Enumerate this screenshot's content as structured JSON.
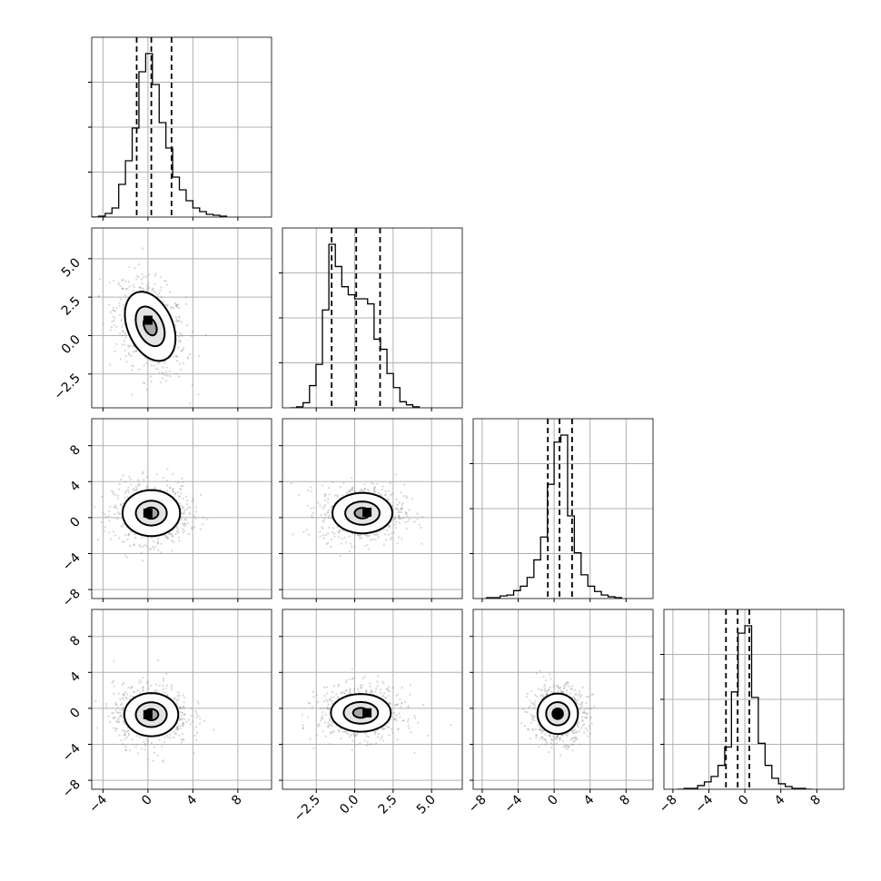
{
  "chart_data": {
    "type": "corner",
    "grid": true,
    "colors": {
      "line": "#000000",
      "grid": "#b0b0b0",
      "scatter": "#8c8c8c",
      "density_max": "#000000"
    },
    "parameters": [
      {
        "index": 0,
        "range": [
          -5.0,
          11.0
        ],
        "quantiles": [
          -1.0,
          0.3,
          2.1
        ],
        "ticks": [
          -4,
          0,
          4,
          8
        ],
        "tick_labels": [
          "−4",
          "0",
          "4",
          "8"
        ],
        "hist": {
          "edges": [
            -5.0,
            -4.4,
            -3.8,
            -3.2,
            -2.6,
            -2.0,
            -1.4,
            -0.8,
            -0.2,
            0.4,
            1.0,
            1.6,
            2.2,
            2.8,
            3.4,
            4.0,
            4.6,
            5.2,
            5.8,
            6.4,
            7.0
          ],
          "counts": [
            0,
            1,
            4,
            10,
            36,
            62,
            98,
            160,
            180,
            146,
            104,
            76,
            44,
            30,
            18,
            10,
            6,
            3,
            2,
            1
          ]
        }
      },
      {
        "index": 1,
        "range": [
          -4.7,
          7.0
        ],
        "quantiles": [
          -1.5,
          0.1,
          1.65
        ],
        "ticks": [
          -2.5,
          0.0,
          2.5,
          5.0
        ],
        "tick_labels": [
          "−2.5",
          "0.0",
          "2.5",
          "5.0"
        ],
        "hist": {
          "edges": [
            -4.2,
            -3.78,
            -3.36,
            -2.94,
            -2.52,
            -2.1,
            -1.68,
            -1.26,
            -0.84,
            -0.42,
            0.0,
            0.42,
            0.84,
            1.26,
            1.68,
            2.1,
            2.52,
            2.94,
            3.36,
            3.78,
            4.2
          ],
          "counts": [
            0,
            1,
            5,
            22,
            43,
            97,
            162,
            140,
            120,
            112,
            108,
            108,
            103,
            68,
            58,
            34,
            20,
            6,
            3,
            1
          ]
        }
      },
      {
        "index": 2,
        "range": [
          -9.0,
          11.0
        ],
        "quantiles": [
          -0.7,
          0.6,
          2.0
        ],
        "ticks": [
          -8,
          -4,
          0,
          4,
          8
        ],
        "tick_labels": [
          "−8",
          "−4",
          "0",
          "4",
          "8"
        ],
        "hist": {
          "edges": [
            -7.5,
            -6.75,
            -6.0,
            -5.25,
            -4.5,
            -3.75,
            -3.0,
            -2.25,
            -1.5,
            -0.75,
            0.0,
            0.75,
            1.5,
            2.25,
            3.0,
            3.75,
            4.5,
            5.25,
            6.0,
            6.75,
            7.5
          ],
          "counts": [
            1,
            1,
            3,
            4,
            9,
            14,
            24,
            44,
            70,
            130,
            178,
            186,
            94,
            52,
            27,
            14,
            8,
            4,
            2,
            1
          ]
        }
      },
      {
        "index": 3,
        "range": [
          -9.0,
          11.0
        ],
        "quantiles": [
          -2.1,
          -0.8,
          0.5
        ],
        "ticks": [
          -8,
          -4,
          0,
          4,
          8
        ],
        "tick_labels": [
          "−8",
          "−4",
          "0",
          "4",
          "8"
        ],
        "hist": {
          "edges": [
            -7.5,
            -6.75,
            -6.0,
            -5.25,
            -4.5,
            -3.75,
            -2.98,
            -2.24,
            -1.49,
            -0.75,
            0.0,
            0.75,
            1.5,
            2.25,
            3.0,
            3.75,
            4.5,
            5.25,
            6.0,
            6.75,
            7.5
          ],
          "counts": [
            0,
            1,
            1,
            4,
            8,
            14,
            26,
            46,
            106,
            170,
            178,
            100,
            50,
            26,
            12,
            6,
            3,
            1,
            1,
            0
          ]
        }
      }
    ],
    "pairs": [
      {
        "x": 0,
        "y": 1,
        "center": [
          0.2,
          0.6
        ],
        "spread": [
          1.5,
          1.5
        ],
        "rho": -0.35,
        "density_mode": [
          0.0,
          1.0
        ],
        "contour_levels": [
          0.39,
          0.86,
          1.5
        ]
      },
      {
        "x": 0,
        "y": 2,
        "center": [
          0.3,
          0.5
        ],
        "spread": [
          1.6,
          1.6
        ],
        "rho": 0.0,
        "density_mode": [
          0.0,
          0.5
        ],
        "contour_levels": [
          0.39,
          0.86,
          1.6
        ]
      },
      {
        "x": 1,
        "y": 2,
        "center": [
          0.5,
          0.5
        ],
        "spread": [
          1.3,
          1.5
        ],
        "rho": 0.0,
        "density_mode": [
          0.8,
          0.6
        ],
        "contour_levels": [
          0.39,
          0.86,
          1.5
        ]
      },
      {
        "x": 0,
        "y": 3,
        "center": [
          0.3,
          -0.7
        ],
        "spread": [
          1.6,
          1.6
        ],
        "rho": 0.0,
        "density_mode": [
          0.0,
          -0.7
        ],
        "contour_levels": [
          0.39,
          0.86,
          1.5
        ]
      },
      {
        "x": 1,
        "y": 3,
        "center": [
          0.4,
          -0.5
        ],
        "spread": [
          1.3,
          1.4
        ],
        "rho": 0.0,
        "density_mode": [
          0.8,
          -0.5
        ],
        "contour_levels": [
          0.39,
          0.86,
          1.5
        ]
      },
      {
        "x": 2,
        "y": 3,
        "center": [
          0.4,
          -0.6
        ],
        "spread": [
          1.5,
          1.5
        ],
        "rho": 0.0,
        "density_mode": [
          0.4,
          -0.6
        ],
        "contour_levels": [
          0.39,
          0.86,
          1.5
        ]
      }
    ]
  }
}
